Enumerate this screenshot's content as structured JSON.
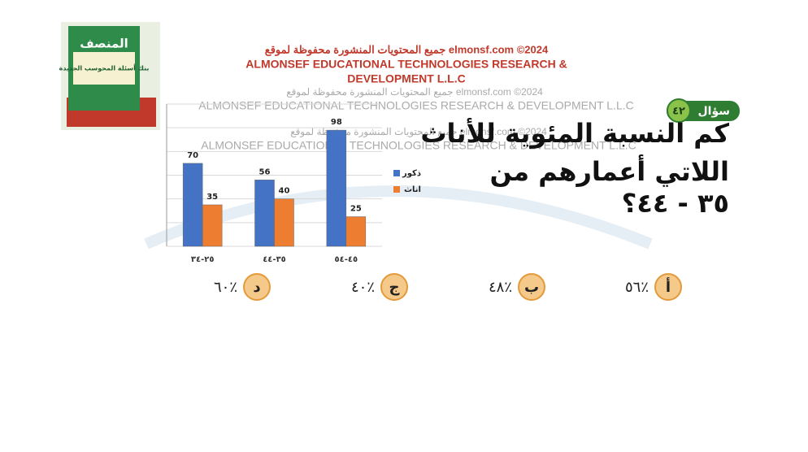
{
  "watermark": {
    "top_arabic": "جميع المحتويات المنشورة محفوظة لموقع elmonsf.com ©2024",
    "top_english_1": "ALMONSEF EDUCATIONAL TECHNOLOGIES RESEARCH &",
    "top_english_2": "DEVELOPMENT L.L.C",
    "faint_arabic": "جميع المحتويات المنشورة محفوظة لموقع elmonsf.com ©2024",
    "faint_english": "ALMONSEF EDUCATIONAL TECHNOLOGIES RESEARCH & DEVELOPMENT L.L.C"
  },
  "book": {
    "title": "المنصف",
    "subtitle": "بنك أسئلة المحوسب الجديدة"
  },
  "question": {
    "badge_label": "سؤال",
    "badge_number": "٤٢",
    "lines": [
      "كم النسبة المئوية للأناث",
      "اللاتي أعمارهم من",
      "٣٥ - ٤٤؟"
    ]
  },
  "options": [
    {
      "letter": "أ",
      "text": "٥٦٪"
    },
    {
      "letter": "ب",
      "text": "٤٨٪"
    },
    {
      "letter": "ج",
      "text": "٤٠٪"
    },
    {
      "letter": "د",
      "text": "٦٠٪"
    }
  ],
  "chart_data": {
    "type": "bar",
    "categories": [
      "٢٥-٣٤",
      "٣٥-٤٤",
      "٤٥-٥٤"
    ],
    "series": [
      {
        "name": "ذكور",
        "color": "#4472c4",
        "values": [
          70,
          56,
          98
        ]
      },
      {
        "name": "اناث",
        "color": "#ed7d31",
        "values": [
          35,
          40,
          25
        ]
      }
    ],
    "ylim": [
      0,
      120
    ],
    "yticks": [
      0,
      20,
      40,
      60,
      80,
      100,
      120
    ],
    "grid": true,
    "legend": "right"
  }
}
